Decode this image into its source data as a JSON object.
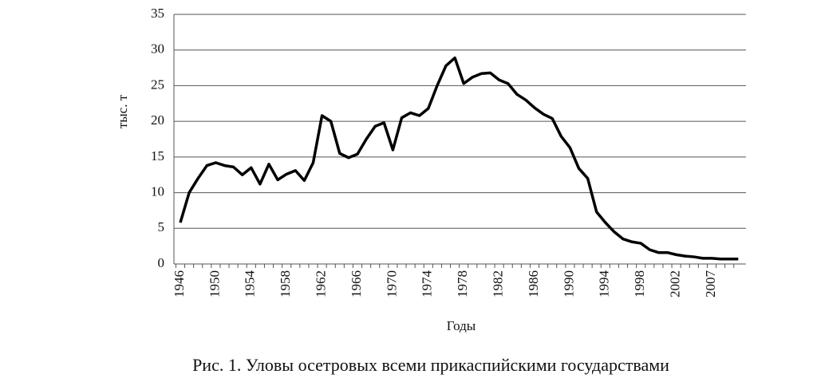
{
  "chart_data": {
    "type": "line",
    "y_label": "тыс. т",
    "x_label": "Годы",
    "caption": "Рис. 1. Уловы осетровых всеми прикаспийскими государствами",
    "categories": [
      "1946",
      null,
      null,
      null,
      "1950",
      null,
      null,
      null,
      "1954",
      null,
      null,
      null,
      "1958",
      null,
      null,
      null,
      "1962",
      null,
      null,
      null,
      "1966",
      null,
      null,
      null,
      "1970",
      null,
      null,
      null,
      "1974",
      null,
      null,
      null,
      "1978",
      null,
      null,
      null,
      "1982",
      null,
      null,
      null,
      "1986",
      null,
      null,
      null,
      "1990",
      null,
      null,
      null,
      "1994",
      null,
      null,
      null,
      "1998",
      null,
      null,
      null,
      "2002",
      null,
      null,
      null,
      "2007",
      null,
      null,
      null
    ],
    "values": [
      5.8,
      10,
      12,
      13.8,
      14.2,
      13.8,
      13.6,
      12.5,
      13.5,
      11.2,
      14,
      11.8,
      12.6,
      13.1,
      11.7,
      14.2,
      20.8,
      20,
      15.5,
      14.9,
      15.4,
      17.5,
      19.3,
      19.8,
      16,
      20.5,
      21.2,
      20.8,
      21.8,
      25,
      27.8,
      28.9,
      25.3,
      26.2,
      26.7,
      26.8,
      25.8,
      25.3,
      23.8,
      23,
      21.9,
      21,
      20.4,
      17.9,
      16.3,
      13.4,
      12,
      7.3,
      5.8,
      4.5,
      3.5,
      3.1,
      2.9,
      2,
      1.6,
      1.6,
      1.3,
      1.1,
      1.0,
      0.8,
      0.8,
      0.7,
      0.7,
      0.7
    ],
    "color": "#000000",
    "ylim": [
      0,
      35
    ],
    "yticks": [
      0,
      5,
      10,
      15,
      20,
      25,
      30,
      35
    ],
    "grid": true
  }
}
